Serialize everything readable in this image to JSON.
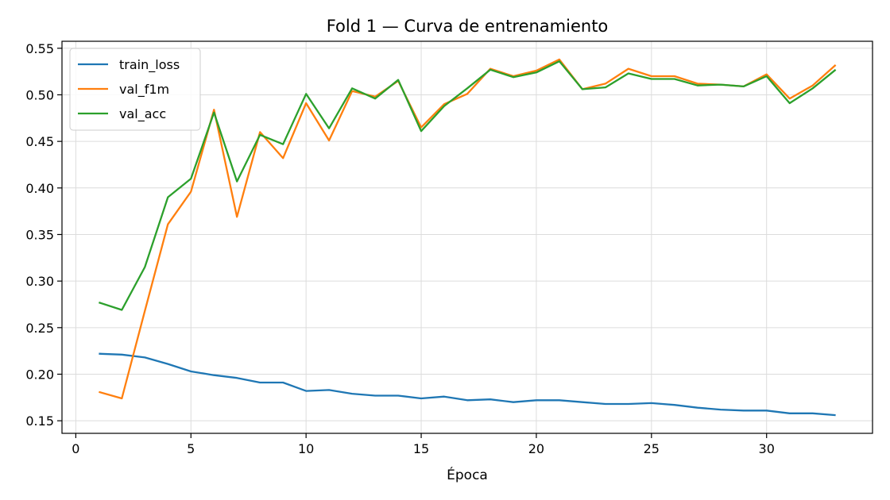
{
  "chart_data": {
    "type": "line",
    "title": "Fold 1 — Curva de entrenamiento",
    "xlabel": "Época",
    "ylabel": "",
    "xlim": [
      -0.6,
      34.6
    ],
    "ylim": [
      0.1365,
      0.5575
    ],
    "xticks": [
      0,
      5,
      10,
      15,
      20,
      25,
      30
    ],
    "yticks": [
      0.15,
      0.2,
      0.25,
      0.3,
      0.35,
      0.4,
      0.45,
      0.5,
      0.55
    ],
    "ytick_labels": [
      "0.15",
      "0.20",
      "0.25",
      "0.30",
      "0.35",
      "0.40",
      "0.45",
      "0.50",
      "0.55"
    ],
    "grid": true,
    "legend_position": "top-left",
    "x": [
      1,
      2,
      3,
      4,
      5,
      6,
      7,
      8,
      9,
      10,
      11,
      12,
      13,
      14,
      15,
      16,
      17,
      18,
      19,
      20,
      21,
      22,
      23,
      24,
      25,
      26,
      27,
      28,
      29,
      30,
      31,
      32,
      33
    ],
    "series": [
      {
        "name": "train_loss",
        "color": "#1f77b4",
        "values": [
          0.222,
          0.221,
          0.218,
          0.211,
          0.203,
          0.199,
          0.196,
          0.191,
          0.191,
          0.182,
          0.183,
          0.179,
          0.177,
          0.177,
          0.174,
          0.176,
          0.172,
          0.173,
          0.17,
          0.172,
          0.172,
          0.17,
          0.168,
          0.168,
          0.169,
          0.167,
          0.164,
          0.162,
          0.161,
          0.161,
          0.158,
          0.158,
          0.156
        ]
      },
      {
        "name": "val_f1m",
        "color": "#ff7f0e",
        "values": [
          0.181,
          0.174,
          0.268,
          0.361,
          0.396,
          0.484,
          0.369,
          0.46,
          0.432,
          0.491,
          0.451,
          0.504,
          0.498,
          0.515,
          0.465,
          0.49,
          0.501,
          0.528,
          0.52,
          0.526,
          0.538,
          0.506,
          0.512,
          0.528,
          0.52,
          0.52,
          0.512,
          0.511,
          0.509,
          0.522,
          0.496,
          0.51,
          0.532
        ]
      },
      {
        "name": "val_acc",
        "color": "#2ca02c",
        "values": [
          0.277,
          0.269,
          0.315,
          0.39,
          0.41,
          0.481,
          0.407,
          0.457,
          0.447,
          0.501,
          0.464,
          0.507,
          0.496,
          0.516,
          0.461,
          0.488,
          0.507,
          0.527,
          0.519,
          0.524,
          0.536,
          0.506,
          0.508,
          0.523,
          0.517,
          0.517,
          0.51,
          0.511,
          0.509,
          0.52,
          0.491,
          0.507,
          0.527
        ]
      }
    ]
  }
}
